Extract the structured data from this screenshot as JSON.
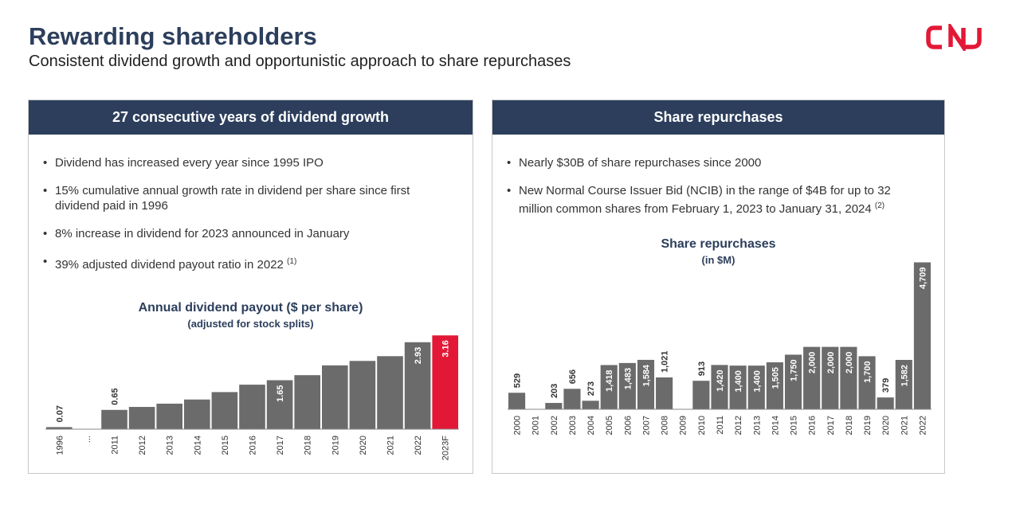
{
  "header": {
    "title": "Rewarding shareholders",
    "subtitle": "Consistent dividend growth and opportunistic approach to share repurchases",
    "logo_text": "CN"
  },
  "colors": {
    "navy": "#2c3e5c",
    "bar": "#6b6b6b",
    "highlight": "#e31837",
    "brand_red": "#e31837"
  },
  "left_panel": {
    "header": "27 consecutive years of dividend growth",
    "bullets": [
      {
        "text": "Dividend has increased every year since 1995 IPO",
        "note": ""
      },
      {
        "text": "15% cumulative annual growth rate in dividend per share since first dividend paid in 1996",
        "note": ""
      },
      {
        "text": "8% increase in dividend for 2023 announced in January",
        "note": ""
      },
      {
        "text": "39% adjusted dividend payout ratio in 2022",
        "note": "(1)"
      }
    ],
    "chart_title": "Annual dividend payout ($ per share)",
    "chart_subtitle": "(adjusted for stock splits)"
  },
  "right_panel": {
    "header": "Share repurchases",
    "bullets": [
      {
        "text": "Nearly $30B of share repurchases since 2000",
        "note": ""
      },
      {
        "text": "New Normal Course Issuer Bid (NCIB) in the range of $4B for up to 32 million common shares from February 1, 2023 to January 31, 2024",
        "note": "(2)"
      }
    ],
    "chart_title": "Share repurchases",
    "chart_subtitle": "(in $M)"
  },
  "chart_data": [
    {
      "type": "bar",
      "title": "Annual dividend payout ($ per share)",
      "subtitle": "(adjusted for stock splits)",
      "categories": [
        "1996",
        "...",
        "2011",
        "2012",
        "2013",
        "2014",
        "2015",
        "2016",
        "2017",
        "2018",
        "2019",
        "2020",
        "2021",
        "2022",
        "2023F"
      ],
      "values": [
        0.07,
        null,
        0.65,
        0.75,
        0.86,
        1.0,
        1.25,
        1.5,
        1.65,
        1.82,
        2.15,
        2.3,
        2.46,
        2.93,
        3.16
      ],
      "data_labels": [
        "0.07",
        "",
        "0.65",
        "",
        "",
        "",
        "",
        "",
        "1.65",
        "",
        "",
        "",
        "",
        "2.93",
        "3.16"
      ],
      "highlight_category": "2023F",
      "ylim": [
        0,
        3.3
      ]
    },
    {
      "type": "bar",
      "title": "Share repurchases",
      "subtitle": "(in $M)",
      "categories": [
        "2000",
        "2001",
        "2002",
        "2003",
        "2004",
        "2005",
        "2006",
        "2007",
        "2008",
        "2009",
        "2010",
        "2011",
        "2012",
        "2013",
        "2014",
        "2015",
        "2016",
        "2017",
        "2018",
        "2019",
        "2020",
        "2021",
        "2022"
      ],
      "values": [
        529,
        0,
        203,
        656,
        273,
        1418,
        1483,
        1584,
        1021,
        0,
        913,
        1420,
        1400,
        1400,
        1505,
        1750,
        2000,
        2000,
        2000,
        1700,
        379,
        1582,
        4709
      ],
      "data_labels": [
        "529",
        "",
        "203",
        "656",
        "273",
        "1,418",
        "1,483",
        "1,584",
        "1,021",
        "",
        "913",
        "1,420",
        "1,400",
        "1,400",
        "1,505",
        "1,750",
        "2,000",
        "2,000",
        "2,000",
        "1,700",
        "379",
        "1,582",
        "4,709"
      ],
      "ylim": [
        0,
        4900
      ]
    }
  ]
}
